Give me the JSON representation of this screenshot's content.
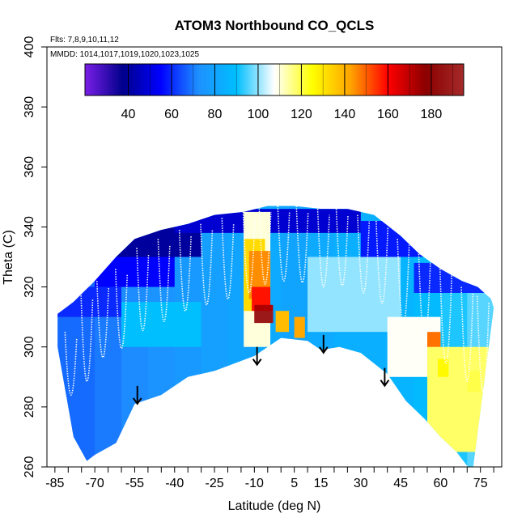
{
  "chart_data": {
    "type": "heatmap",
    "title": "ATOM3 Northbound CO_QCLS",
    "notes": {
      "flights": "Flts: 7,8,9,10,11,12",
      "dates": "MMDD: 1014,1017,1019,1020,1023,1025"
    },
    "xlabel": "Latitude (deg N)",
    "ylabel": "Theta (C)",
    "xlim": [
      -88,
      83
    ],
    "ylim": [
      260,
      400
    ],
    "x_ticks": [
      "-85",
      "-70",
      "-55",
      "-40",
      "-25",
      "-10",
      "5",
      "15",
      "30",
      "45",
      "60",
      "75"
    ],
    "x_tick_values": [
      -85,
      -70,
      -55,
      -40,
      -25,
      -10,
      5,
      15,
      30,
      45,
      60,
      75
    ],
    "y_ticks": [
      "260",
      "280",
      "300",
      "320",
      "340",
      "360",
      "380",
      "400"
    ],
    "y_tick_values": [
      260,
      280,
      300,
      320,
      340,
      360,
      380,
      400
    ],
    "colorbar": {
      "min": 20,
      "max": 195,
      "ticks": [
        "40",
        "60",
        "80",
        "100",
        "120",
        "140",
        "160",
        "180"
      ],
      "tick_values": [
        40,
        60,
        80,
        100,
        120,
        140,
        160,
        180
      ],
      "gradient": [
        "#7a1ee6",
        "#00008b",
        "#0000ff",
        "#1e90ff",
        "#00bfff",
        "#ffffff",
        "#ffff00",
        "#ffa500",
        "#ff0000",
        "#8b0000",
        "#a52a2a"
      ]
    },
    "top_boundary": [
      [
        -84,
        311
      ],
      [
        -78,
        315
      ],
      [
        -70,
        322
      ],
      [
        -62,
        330
      ],
      [
        -55,
        336
      ],
      [
        -45,
        339
      ],
      [
        -35,
        341
      ],
      [
        -25,
        344
      ],
      [
        -14,
        345
      ],
      [
        -5,
        347
      ],
      [
        5,
        347
      ],
      [
        15,
        346
      ],
      [
        25,
        346
      ],
      [
        35,
        344
      ],
      [
        45,
        337
      ],
      [
        52,
        331
      ],
      [
        60,
        326
      ],
      [
        68,
        322
      ],
      [
        74,
        320
      ],
      [
        79,
        316
      ],
      [
        80,
        313
      ]
    ],
    "bottom_boundary": [
      [
        -84,
        300
      ],
      [
        -78,
        270
      ],
      [
        -73,
        262
      ],
      [
        -70,
        264
      ],
      [
        -62,
        268
      ],
      [
        -55,
        281
      ],
      [
        -45,
        284
      ],
      [
        -35,
        290
      ],
      [
        -25,
        292
      ],
      [
        -10,
        297
      ],
      [
        0,
        303
      ],
      [
        10,
        302
      ],
      [
        15,
        299
      ],
      [
        22,
        300
      ],
      [
        30,
        298
      ],
      [
        40,
        291
      ],
      [
        47,
        282
      ],
      [
        54,
        276
      ],
      [
        60,
        270
      ],
      [
        66,
        265
      ],
      [
        72,
        258
      ]
    ],
    "field": [
      {
        "lat": -82,
        "lo": 270,
        "hi": 312,
        "co": 68
      },
      {
        "lat": -75,
        "lo": 268,
        "hi": 318,
        "co": 68
      },
      {
        "lat": -65,
        "lo": 270,
        "hi": 326,
        "co": 70
      },
      {
        "lat": -55,
        "lo": 282,
        "hi": 334,
        "co": 72
      },
      {
        "lat": -45,
        "lo": 285,
        "hi": 338,
        "co": 74
      },
      {
        "lat": -35,
        "lo": 290,
        "hi": 341,
        "co": 76
      },
      {
        "lat": -25,
        "lo": 292,
        "hi": 343,
        "co": 78
      },
      {
        "lat": -15,
        "lo": 295,
        "hi": 345,
        "co": 80
      },
      {
        "lat": -5,
        "lo": 300,
        "hi": 347,
        "co": 82
      },
      {
        "lat": 5,
        "lo": 302,
        "hi": 347,
        "co": 80
      },
      {
        "lat": 15,
        "lo": 299,
        "hi": 346,
        "co": 82
      },
      {
        "lat": 25,
        "lo": 300,
        "hi": 346,
        "co": 84
      },
      {
        "lat": 35,
        "lo": 295,
        "hi": 344,
        "co": 84
      },
      {
        "lat": 45,
        "lo": 284,
        "hi": 337,
        "co": 86
      },
      {
        "lat": 55,
        "lo": 275,
        "hi": 330,
        "co": 88
      },
      {
        "lat": 65,
        "lo": 266,
        "hi": 324,
        "co": 92
      },
      {
        "lat": 75,
        "lo": 260,
        "hi": 318,
        "co": 96
      }
    ],
    "patches": [
      {
        "lat0": -84,
        "lat1": -30,
        "th0": 330,
        "th1": 340,
        "co": 40
      },
      {
        "lat0": -70,
        "lat1": -40,
        "th0": 320,
        "th1": 330,
        "co": 55
      },
      {
        "lat0": -40,
        "lat1": 30,
        "th0": 338,
        "th1": 346,
        "co": 48
      },
      {
        "lat0": 30,
        "lat1": 60,
        "th0": 330,
        "th1": 342,
        "co": 58
      },
      {
        "lat0": 50,
        "lat1": 78,
        "th0": 318,
        "th1": 328,
        "co": 60
      },
      {
        "lat0": -84,
        "lat1": -60,
        "th0": 310,
        "th1": 320,
        "co": 60
      },
      {
        "lat0": -60,
        "lat1": -30,
        "th0": 300,
        "th1": 315,
        "co": 90
      },
      {
        "lat0": 10,
        "lat1": 45,
        "th0": 305,
        "th1": 330,
        "co": 100
      },
      {
        "lat0": 40,
        "lat1": 60,
        "th0": 290,
        "th1": 310,
        "co": 108
      },
      {
        "lat0": 55,
        "lat1": 80,
        "th0": 265,
        "th1": 300,
        "co": 118
      },
      {
        "lat0": -14,
        "lat1": -4,
        "th0": 300,
        "th1": 345,
        "co": 110
      },
      {
        "lat0": -14,
        "lat1": -6,
        "th0": 312,
        "th1": 336,
        "co": 132
      },
      {
        "lat0": -12,
        "lat1": -4,
        "th0": 316,
        "th1": 332,
        "co": 145
      },
      {
        "lat0": -11,
        "lat1": -4,
        "th0": 312,
        "th1": 320,
        "co": 158
      },
      {
        "lat0": -10,
        "lat1": -3,
        "th0": 308,
        "th1": 314,
        "co": 172
      },
      {
        "lat0": -10,
        "lat1": -3,
        "th0": 308,
        "th1": 312,
        "co": 188
      },
      {
        "lat0": -2,
        "lat1": 3,
        "th0": 305,
        "th1": 312,
        "co": 138
      },
      {
        "lat0": 5,
        "lat1": 9,
        "th0": 303,
        "th1": 310,
        "co": 142
      },
      {
        "lat0": 55,
        "lat1": 60,
        "th0": 300,
        "th1": 305,
        "co": 148
      },
      {
        "lat0": 59,
        "lat1": 63,
        "th0": 290,
        "th1": 296,
        "co": 126
      },
      {
        "lat0": 70,
        "lat1": 75,
        "th0": 285,
        "th1": 292,
        "co": 120
      }
    ],
    "flight_tracks": [
      {
        "lat": -79,
        "lo": 268,
        "hi": 305
      },
      {
        "lat": -73,
        "lo": 264,
        "hi": 318
      },
      {
        "lat": -67,
        "lo": 276,
        "hi": 322
      },
      {
        "lat": -60,
        "lo": 278,
        "hi": 326
      },
      {
        "lat": -52,
        "lo": 283,
        "hi": 333
      },
      {
        "lat": -44,
        "lo": 286,
        "hi": 336
      },
      {
        "lat": -36,
        "lo": 290,
        "hi": 339
      },
      {
        "lat": -28,
        "lo": 292,
        "hi": 341
      },
      {
        "lat": -20,
        "lo": 294,
        "hi": 343
      },
      {
        "lat": -12,
        "lo": 296,
        "hi": 345
      },
      {
        "lat": -6,
        "lo": 300,
        "hi": 347
      },
      {
        "lat": 1,
        "lo": 302,
        "hi": 347
      },
      {
        "lat": 8,
        "lo": 301,
        "hi": 347
      },
      {
        "lat": 16,
        "lo": 299,
        "hi": 346
      },
      {
        "lat": 23,
        "lo": 300,
        "hi": 346
      },
      {
        "lat": 31,
        "lo": 297,
        "hi": 344
      },
      {
        "lat": 38,
        "lo": 292,
        "hi": 342
      },
      {
        "lat": 46,
        "lo": 284,
        "hi": 336
      },
      {
        "lat": 54,
        "lo": 277,
        "hi": 331
      },
      {
        "lat": 62,
        "lo": 268,
        "hi": 326
      },
      {
        "lat": 70,
        "lo": 262,
        "hi": 320
      },
      {
        "lat": 76,
        "lo": 258,
        "hi": 317
      }
    ],
    "arrows": [
      {
        "lat": -54,
        "theta": 287
      },
      {
        "lat": -9,
        "theta": 300
      },
      {
        "lat": 16,
        "theta": 304
      },
      {
        "lat": 39,
        "theta": 293
      }
    ]
  }
}
